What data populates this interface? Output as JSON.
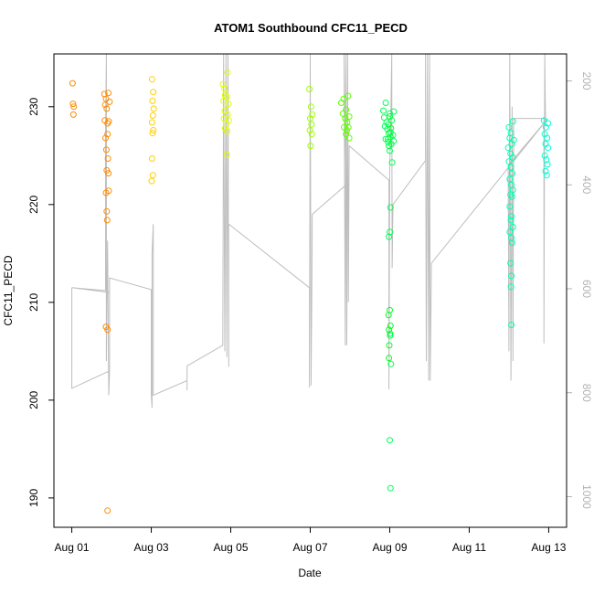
{
  "chart_data": {
    "type": "scatter",
    "title": "ATOM1 Southbound CFC11_PECD",
    "xlabel": "Date",
    "ylabel": "CFC11_PECD",
    "x_range_days": [
      -0.45,
      12.45
    ],
    "x_ticks": [
      {
        "day": 0,
        "label": "Aug 01"
      },
      {
        "day": 2,
        "label": "Aug 03"
      },
      {
        "day": 4,
        "label": "Aug 05"
      },
      {
        "day": 6,
        "label": "Aug 07"
      },
      {
        "day": 8,
        "label": "Aug 09"
      },
      {
        "day": 10,
        "label": "Aug 11"
      },
      {
        "day": 12,
        "label": "Aug 13"
      }
    ],
    "ylim": [
      187,
      235.4
    ],
    "y_ticks": [
      190,
      200,
      210,
      220,
      230
    ],
    "y2_ticks": [
      200,
      400,
      600,
      800,
      1000
    ],
    "y2_range": [
      1059,
      148
    ],
    "colors": {
      "axis": "#000000",
      "secondary_axis": "#b3b3b3",
      "depth_trace": "#bebebe",
      "station_colors": [
        "#ff8c00",
        "#ffd000",
        "#e1ff00",
        "#a0ff00",
        "#60ff00",
        "#00ff22",
        "#00ff55",
        "#00ffb0",
        "#00ffd5"
      ]
    },
    "series": [
      {
        "color_index": 0,
        "points": [
          [
            0.02,
            232.4
          ],
          [
            0.03,
            230.3
          ],
          [
            0.05,
            230.0
          ],
          [
            0.04,
            229.2
          ],
          [
            0.82,
            231.3
          ],
          [
            0.86,
            230.8
          ],
          [
            0.92,
            231.4
          ],
          [
            0.84,
            230.2
          ],
          [
            0.88,
            229.8
          ],
          [
            0.95,
            230.5
          ],
          [
            0.83,
            228.6
          ],
          [
            0.9,
            228.3
          ],
          [
            0.93,
            228.5
          ],
          [
            0.85,
            226.8
          ],
          [
            0.9,
            227.2
          ],
          [
            0.87,
            225.6
          ],
          [
            0.91,
            224.7
          ],
          [
            0.88,
            223.5
          ],
          [
            0.92,
            223.2
          ],
          [
            0.86,
            221.2
          ],
          [
            0.93,
            221.4
          ],
          [
            0.88,
            219.3
          ],
          [
            0.89,
            218.4
          ],
          [
            0.86,
            207.5
          ],
          [
            0.9,
            207.2
          ],
          [
            0.9,
            188.7
          ]
        ]
      },
      {
        "color_index": 1,
        "points": [
          [
            2.02,
            232.8
          ],
          [
            2.05,
            231.5
          ],
          [
            2.03,
            230.6
          ],
          [
            2.06,
            229.8
          ],
          [
            2.04,
            229.1
          ],
          [
            2.02,
            228.4
          ],
          [
            2.05,
            227.6
          ],
          [
            2.03,
            227.3
          ],
          [
            2.02,
            224.7
          ],
          [
            2.04,
            223.0
          ],
          [
            2.01,
            222.4
          ]
        ]
      },
      {
        "color_index": 2,
        "points": [
          [
            3.8,
            232.3
          ],
          [
            3.84,
            231.9
          ],
          [
            3.92,
            233.5
          ],
          [
            3.86,
            231.2
          ],
          [
            3.82,
            230.6
          ],
          [
            3.9,
            231.0
          ],
          [
            3.94,
            230.3
          ],
          [
            3.85,
            229.6
          ],
          [
            3.92,
            229.2
          ],
          [
            3.83,
            228.8
          ],
          [
            3.88,
            228.3
          ],
          [
            3.95,
            228.6
          ],
          [
            3.86,
            227.8
          ],
          [
            3.91,
            227.5
          ],
          [
            3.9,
            225.1
          ]
        ]
      },
      {
        "color_index": 3,
        "points": [
          [
            5.98,
            231.8
          ],
          [
            6.02,
            230.0
          ],
          [
            6.05,
            229.2
          ],
          [
            6.0,
            228.8
          ],
          [
            6.03,
            228.2
          ],
          [
            5.99,
            227.6
          ],
          [
            6.04,
            227.2
          ],
          [
            6.01,
            226.0
          ]
        ]
      },
      {
        "color_index": 4,
        "points": [
          [
            6.78,
            230.4
          ],
          [
            6.84,
            230.8
          ],
          [
            6.9,
            229.7
          ],
          [
            6.95,
            231.1
          ],
          [
            6.82,
            229.3
          ],
          [
            6.88,
            228.8
          ],
          [
            6.93,
            228.4
          ],
          [
            6.98,
            229.0
          ],
          [
            6.85,
            227.9
          ],
          [
            6.92,
            227.6
          ],
          [
            6.96,
            227.9
          ],
          [
            6.9,
            227.2
          ],
          [
            6.98,
            226.8
          ]
        ]
      },
      {
        "color_index": 5,
        "points": [
          [
            8.0,
            229.0
          ],
          [
            7.97,
            228.2
          ],
          [
            8.03,
            227.8
          ],
          [
            7.98,
            227.3
          ],
          [
            8.02,
            226.9
          ],
          [
            7.96,
            226.7
          ],
          [
            7.98,
            226.0
          ],
          [
            8.0,
            209.2
          ],
          [
            7.97,
            208.7
          ],
          [
            8.02,
            207.6
          ],
          [
            7.98,
            207.2
          ],
          [
            8.01,
            206.8
          ],
          [
            7.99,
            205.6
          ],
          [
            7.98,
            204.3
          ]
        ]
      },
      {
        "color_index": 6,
        "points": [
          [
            7.9,
            230.4
          ],
          [
            7.84,
            229.6
          ],
          [
            7.86,
            228.9
          ],
          [
            7.92,
            228.4
          ],
          [
            8.0,
            229.3
          ],
          [
            8.05,
            228.6
          ],
          [
            8.1,
            229.5
          ],
          [
            7.88,
            228.0
          ],
          [
            7.94,
            227.7
          ],
          [
            8.02,
            227.4
          ],
          [
            8.08,
            227.1
          ],
          [
            7.9,
            226.7
          ],
          [
            7.96,
            226.4
          ],
          [
            8.04,
            226.2
          ],
          [
            8.1,
            226.5
          ],
          [
            8.0,
            225.5
          ],
          [
            8.06,
            224.3
          ],
          [
            8.02,
            219.7
          ],
          [
            8.0,
            217.2
          ],
          [
            7.98,
            216.7
          ],
          [
            8.01,
            206.6
          ],
          [
            8.03,
            203.7
          ],
          [
            8.0,
            195.9
          ],
          [
            8.02,
            191.0
          ]
        ]
      },
      {
        "color_index": 7,
        "points": [
          [
            11.0,
            227.9
          ],
          [
            11.05,
            227.3
          ],
          [
            11.1,
            228.5
          ],
          [
            11.02,
            226.8
          ],
          [
            11.07,
            226.2
          ],
          [
            11.12,
            226.6
          ],
          [
            10.98,
            225.8
          ],
          [
            11.04,
            225.2
          ],
          [
            11.1,
            224.8
          ],
          [
            11.0,
            224.4
          ],
          [
            11.05,
            223.8
          ],
          [
            11.08,
            223.2
          ],
          [
            11.02,
            222.6
          ],
          [
            11.06,
            222.0
          ],
          [
            11.1,
            221.5
          ],
          [
            11.04,
            221.0
          ],
          [
            11.08,
            220.8
          ],
          [
            11.02,
            219.8
          ],
          [
            11.06,
            218.8
          ],
          [
            11.05,
            218.4
          ],
          [
            11.1,
            217.7
          ],
          [
            11.02,
            217.2
          ],
          [
            11.06,
            216.6
          ],
          [
            11.08,
            216.1
          ],
          [
            11.04,
            214.0
          ],
          [
            11.06,
            212.7
          ],
          [
            11.05,
            211.6
          ],
          [
            11.06,
            207.7
          ]
        ]
      },
      {
        "color_index": 8,
        "points": [
          [
            11.88,
            228.6
          ],
          [
            11.93,
            227.9
          ],
          [
            11.98,
            228.3
          ],
          [
            11.9,
            227.2
          ],
          [
            11.96,
            226.8
          ],
          [
            11.92,
            226.2
          ],
          [
            11.98,
            225.8
          ],
          [
            11.9,
            225.0
          ],
          [
            11.94,
            224.6
          ],
          [
            11.97,
            224.1
          ],
          [
            11.92,
            223.4
          ],
          [
            11.95,
            223.0
          ]
        ]
      }
    ]
  }
}
